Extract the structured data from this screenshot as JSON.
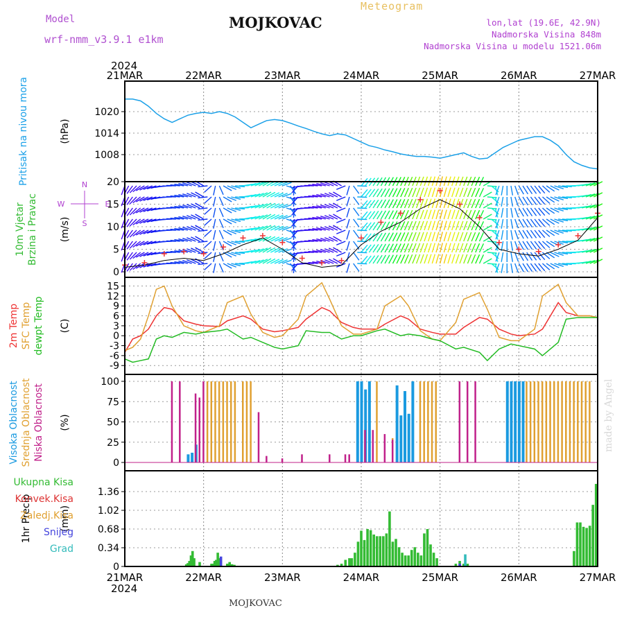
{
  "header": {
    "title": "MOJKOVAC",
    "meteogram": "Meteogram",
    "model_label": "Model",
    "model": "wrf-nmm_v3.9.1  e1km",
    "lonlat": "lon,lat (19.6E, 42.9N)",
    "elevation": "Nadmorska Visina 848m",
    "elevation_model": "Nadmorska Visina u modelu 1521.06m"
  },
  "footer": "MOJKOVAC",
  "watermark": "made by Angel",
  "colors": {
    "pressure": "#1aa0e8",
    "temp2m": "#ee3333",
    "sfc_temp": "#e0a030",
    "dewpoint": "#22bb22",
    "cloud_high": "#1a9ae0",
    "cloud_mid": "#e0a030",
    "cloud_low": "#c0208a",
    "precip_total": "#33bb33",
    "precip_conv": "#dd3333",
    "snow": "#4444dd",
    "graupel": "#33bbbb",
    "wind_gust": "#ee3333"
  },
  "chart_data": {
    "type": "line",
    "x_top_year": "2024",
    "x_bottom_year": "2024",
    "x_ticks": [
      "21MAR",
      "22MAR",
      "23MAR",
      "24MAR",
      "25MAR",
      "26MAR",
      "27MAR"
    ],
    "panels": [
      {
        "id": "pressure",
        "ylabel_lines": [
          "Pritisak na nivou mora"
        ],
        "units": "(hPa)",
        "ylim": [
          1002,
          1026
        ],
        "yticks": [
          "1008",
          "1014",
          "1020"
        ],
        "series": [
          {
            "name": "",
            "x": [
              0,
              0.1,
              0.2,
              0.3,
              0.4,
              0.5,
              0.6,
              0.7,
              0.75,
              0.8,
              0.9,
              1.0,
              1.1,
              1.2,
              1.3,
              1.4,
              1.5,
              1.6,
              1.7,
              1.8,
              1.9,
              2.0,
              2.1,
              2.2,
              2.3,
              2.4,
              2.5,
              2.6,
              2.7,
              2.8,
              2.9,
              3.0,
              3.1,
              3.2,
              3.3,
              3.4,
              3.5,
              3.6,
              3.7,
              3.8,
              3.9,
              4.0,
              4.1,
              4.2,
              4.3,
              4.4,
              4.5,
              4.6,
              4.7,
              4.8,
              4.9,
              5.0,
              5.1,
              5.2,
              5.3,
              5.4,
              5.5,
              5.6,
              5.7,
              5.8,
              5.9,
              6.0
            ],
            "y": [
              1023.5,
              1023.5,
              1023.0,
              1021.5,
              1019.5,
              1018.0,
              1017.0,
              1018.0,
              1018.5,
              1019.0,
              1019.5,
              1019.8,
              1019.5,
              1020.0,
              1019.5,
              1018.5,
              1017.0,
              1015.5,
              1016.5,
              1017.5,
              1017.8,
              1017.5,
              1016.8,
              1016.0,
              1015.3,
              1014.5,
              1013.8,
              1013.3,
              1013.8,
              1013.5,
              1012.5,
              1011.5,
              1010.5,
              1010.0,
              1009.3,
              1008.8,
              1008.2,
              1007.8,
              1007.5,
              1007.5,
              1007.3,
              1007.0,
              1007.5,
              1008.0,
              1008.5,
              1007.5,
              1006.8,
              1007.0,
              1008.5,
              1010.0,
              1011.0,
              1012.0,
              1012.5,
              1013.0,
              1013.0,
              1012.0,
              1010.5,
              1008.0,
              1006.0,
              1005.0,
              1004.3,
              1004.0
            ]
          }
        ]
      },
      {
        "id": "wind",
        "ylabel_lines": [
          "10m Vjetar",
          "Brzina i Pravac"
        ],
        "units": "(m/s)",
        "ylim": [
          0,
          20
        ],
        "yticks": [
          "0",
          "5",
          "10",
          "15",
          "20"
        ],
        "compass": {
          "N": "N",
          "W": "W",
          "E": "E",
          "S": "S"
        },
        "series": [
          {
            "name": "",
            "x": [
              0,
              0.25,
              0.5,
              0.75,
              1.0,
              1.25,
              1.5,
              1.75,
              2.0,
              2.25,
              2.5,
              2.75,
              3.0,
              3.25,
              3.5,
              3.75,
              4.0,
              4.25,
              4.5,
              4.75,
              5.0,
              5.25,
              5.5,
              5.75,
              6.0
            ],
            "y": [
              1.0,
              1.5,
              2.5,
              3.0,
              2.5,
              4.0,
              6.0,
              7.5,
              5.0,
              2.0,
              1.0,
              1.5,
              6.0,
              9.0,
              11.0,
              14.0,
              16.0,
              14.0,
              10.0,
              5.0,
              4.0,
              3.5,
              5.0,
              7.0,
              12.0
            ]
          },
          {
            "name": "",
            "x": [
              0,
              0.25,
              0.5,
              0.75,
              1.0,
              1.25,
              1.5,
              1.75,
              2.0,
              2.25,
              2.5,
              2.75,
              3.0,
              3.25,
              3.5,
              3.75,
              4.0,
              4.25,
              4.5,
              4.75,
              5.0,
              5.25,
              5.5,
              5.75,
              6.0
            ],
            "y": [
              1.5,
              2.0,
              4.0,
              4.5,
              4.0,
              5.5,
              7.5,
              8.0,
              6.5,
              3.0,
              2.0,
              2.5,
              7.5,
              11.0,
              13.0,
              16.0,
              18.0,
              15.0,
              12.0,
              6.5,
              5.0,
              4.5,
              6.0,
              8.0,
              13.0
            ]
          }
        ]
      },
      {
        "id": "temperature",
        "ylabel_lines": [
          "2m Temp",
          "SFC Temp",
          "dewpt Temp"
        ],
        "units": "(C)",
        "ylim": [
          -10,
          17
        ],
        "yticks": [
          "-9",
          "-6",
          "-3",
          "0",
          "3",
          "6",
          "9",
          "12",
          "15"
        ],
        "series": [
          {
            "name": "2m Temp",
            "x": [
              0,
              0.1,
              0.2,
              0.3,
              0.4,
              0.5,
              0.6,
              0.75,
              0.9,
              1.0,
              1.2,
              1.3,
              1.5,
              1.6,
              1.75,
              1.9,
              2.0,
              2.2,
              2.3,
              2.5,
              2.6,
              2.75,
              2.9,
              3.0,
              3.2,
              3.3,
              3.5,
              3.6,
              3.75,
              3.9,
              4.0,
              4.2,
              4.3,
              4.5,
              4.6,
              4.75,
              4.9,
              5.0,
              5.2,
              5.3,
              5.5,
              5.6,
              5.75,
              5.9,
              6.0
            ],
            "y": [
              -5,
              -1.0,
              0,
              2.0,
              6.0,
              8.5,
              8.0,
              4.5,
              3.5,
              3.0,
              2.8,
              4.5,
              6.0,
              5.0,
              2.0,
              1.2,
              1.5,
              2.5,
              5.0,
              8.5,
              7.5,
              4.0,
              2.5,
              2.0,
              2.0,
              3.5,
              6.0,
              5.0,
              2.0,
              1.0,
              0.5,
              0.5,
              2.5,
              5.5,
              5.0,
              2.0,
              0.5,
              0.0,
              0.5,
              2.0,
              10.0,
              7.0,
              6.0,
              6.0,
              5.5
            ]
          },
          {
            "name": "SFC Temp",
            "x": [
              0,
              0.1,
              0.2,
              0.3,
              0.4,
              0.5,
              0.6,
              0.75,
              0.9,
              1.0,
              1.2,
              1.3,
              1.5,
              1.6,
              1.75,
              1.9,
              2.0,
              2.2,
              2.3,
              2.5,
              2.6,
              2.75,
              2.9,
              3.0,
              3.2,
              3.3,
              3.5,
              3.6,
              3.75,
              3.9,
              4.0,
              4.2,
              4.3,
              4.5,
              4.6,
              4.75,
              4.9,
              5.0,
              5.2,
              5.3,
              5.5,
              5.6,
              5.75,
              5.9,
              6.0
            ],
            "y": [
              -4.5,
              -3.5,
              -1.0,
              6.0,
              14.0,
              15.0,
              9.0,
              3.0,
              1.5,
              1.0,
              3.0,
              10.0,
              12.0,
              6.5,
              1.0,
              -0.5,
              0.0,
              5.0,
              12.0,
              16.0,
              11.0,
              3.0,
              0.5,
              0.5,
              2.0,
              9.0,
              12.0,
              9.0,
              1.5,
              -1.0,
              -1.5,
              4.0,
              11.0,
              13.0,
              8.0,
              -0.5,
              -1.5,
              -1.5,
              2.0,
              12.0,
              15.5,
              10.0,
              6.0,
              6.0,
              5.5
            ]
          },
          {
            "name": "dewpt Temp",
            "x": [
              0,
              0.1,
              0.2,
              0.3,
              0.4,
              0.5,
              0.6,
              0.75,
              0.9,
              1.0,
              1.2,
              1.3,
              1.5,
              1.6,
              1.75,
              1.9,
              2.0,
              2.2,
              2.3,
              2.5,
              2.6,
              2.75,
              2.9,
              3.0,
              3.2,
              3.3,
              3.5,
              3.6,
              3.75,
              3.9,
              4.0,
              4.2,
              4.3,
              4.5,
              4.6,
              4.75,
              4.9,
              5.0,
              5.2,
              5.3,
              5.5,
              5.6,
              5.75,
              5.9,
              6.0
            ],
            "y": [
              -7,
              -8.0,
              -7.5,
              -7.0,
              -1.0,
              0.0,
              -0.5,
              1.0,
              0.5,
              1.0,
              1.5,
              2.0,
              -1.0,
              -0.5,
              -2.0,
              -3.5,
              -4.0,
              -3.0,
              1.5,
              1.0,
              1.0,
              -1.0,
              0.0,
              0.0,
              1.5,
              2.0,
              0.0,
              0.5,
              0.0,
              -1.0,
              -1.5,
              -4.0,
              -3.5,
              -5.0,
              -7.5,
              -4.0,
              -2.5,
              -3.0,
              -4.0,
              -6.0,
              -2.0,
              5.0,
              5.5,
              5.5,
              5.5
            ]
          }
        ]
      },
      {
        "id": "clouds",
        "ylabel_lines": [
          "Visoka Oblacnost",
          "Srednja Oblacnost",
          "Niska Oblacnost"
        ],
        "units": "(%)",
        "ylim": [
          0,
          100
        ],
        "yticks": [
          "0",
          "25",
          "50",
          "75",
          "100"
        ],
        "series": [
          {
            "name": "Visoka Oblacnost",
            "type": "bar",
            "x": [
              0.8,
              0.85,
              0.9,
              2.95,
              3.0,
              3.05,
              3.1,
              3.45,
              3.5,
              3.55,
              3.6,
              3.65,
              4.85,
              4.9,
              4.95,
              5.0,
              5.05
            ],
            "y": [
              10,
              12,
              22,
              100,
              100,
              90,
              100,
              95,
              58,
              88,
              60,
              100,
              100,
              100,
              100,
              100,
              100
            ]
          },
          {
            "name": "Srednja Oblacnost",
            "type": "bar",
            "x": [
              1.05,
              1.1,
              1.15,
              1.2,
              1.25,
              1.3,
              1.35,
              1.4,
              1.5,
              1.55,
              1.6,
              3.2,
              3.4,
              3.75,
              3.8,
              3.85,
              3.9,
              3.95,
              5.1,
              5.15,
              5.2,
              5.25,
              5.3,
              5.35,
              5.4,
              5.45,
              5.5,
              5.55,
              5.6,
              5.65,
              5.7,
              5.75,
              5.8,
              5.85,
              5.9
            ],
            "y": [
              100,
              100,
              100,
              100,
              100,
              100,
              100,
              100,
              100,
              100,
              100,
              100,
              30,
              100,
              100,
              100,
              100,
              100,
              100,
              100,
              100,
              100,
              100,
              100,
              100,
              100,
              100,
              100,
              100,
              100,
              100,
              100,
              100,
              100,
              100
            ]
          },
          {
            "name": "Niska Oblacnost",
            "type": "bar",
            "x": [
              0.6,
              0.7,
              0.9,
              0.95,
              1.0,
              1.7,
              1.8,
              2.0,
              2.25,
              2.6,
              2.8,
              2.85,
              3.05,
              3.15,
              3.3,
              3.4,
              4.25,
              4.35,
              4.45
            ],
            "y": [
              100,
              100,
              85,
              80,
              100,
              62,
              8,
              5,
              10,
              10,
              10,
              10,
              40,
              40,
              35,
              28,
              100,
              100,
              100
            ]
          }
        ]
      },
      {
        "id": "precip",
        "ylabel_lines": [
          "1hr Precip"
        ],
        "units": "(mm)",
        "ylim": [
          0,
          1.6
        ],
        "yticks": [
          "0",
          "0.34",
          "0.68",
          "1.02",
          "1.36"
        ],
        "legend": [
          "Ukupna Kisa",
          "Konvek.Kisa",
          "Zaledj.Kisa",
          "Snijeg",
          "Grad"
        ],
        "series": [
          {
            "name": "Ukupna Kisa",
            "type": "bar",
            "x": [
              0.78,
              0.8,
              0.82,
              0.84,
              0.86,
              0.88,
              0.95,
              1.1,
              1.12,
              1.14,
              1.16,
              1.18,
              1.2,
              1.3,
              1.33,
              1.36,
              1.39,
              2.7,
              2.75,
              2.8,
              2.85,
              2.88,
              2.92,
              2.96,
              3.0,
              3.04,
              3.08,
              3.12,
              3.16,
              3.2,
              3.24,
              3.28,
              3.32,
              3.36,
              3.4,
              3.44,
              3.48,
              3.52,
              3.56,
              3.6,
              3.64,
              3.68,
              3.72,
              3.76,
              3.8,
              3.84,
              3.88,
              3.92,
              3.96,
              4.2,
              4.25,
              4.3,
              4.35,
              5.7,
              5.74,
              5.78,
              5.82,
              5.86,
              5.9,
              5.94,
              5.98
            ],
            "y": [
              0.04,
              0.06,
              0.1,
              0.2,
              0.28,
              0.15,
              0.08,
              0.05,
              0.05,
              0.1,
              0.12,
              0.25,
              0.15,
              0.05,
              0.08,
              0.04,
              0.03,
              0.03,
              0.05,
              0.12,
              0.15,
              0.15,
              0.25,
              0.45,
              0.65,
              0.48,
              0.68,
              0.66,
              0.58,
              0.55,
              0.55,
              0.55,
              0.6,
              1.0,
              0.45,
              0.5,
              0.35,
              0.25,
              0.2,
              0.2,
              0.3,
              0.35,
              0.25,
              0.2,
              0.6,
              0.68,
              0.4,
              0.25,
              0.15,
              0.05,
              0.1,
              0.05,
              0.05,
              0.28,
              0.8,
              0.8,
              0.72,
              0.7,
              0.74,
              1.12,
              1.5
            ]
          },
          {
            "name": "Konvek.Kisa",
            "type": "bar",
            "x": [],
            "y": []
          },
          {
            "name": "Zaledj.Kisa",
            "type": "bar",
            "x": [],
            "y": []
          },
          {
            "name": "Snijeg",
            "type": "bar",
            "x": [
              1.22,
              4.25
            ],
            "y": [
              0.18,
              0.05
            ]
          },
          {
            "name": "Grad",
            "type": "bar",
            "x": [
              4.32
            ],
            "y": [
              0.22
            ]
          }
        ]
      }
    ]
  }
}
